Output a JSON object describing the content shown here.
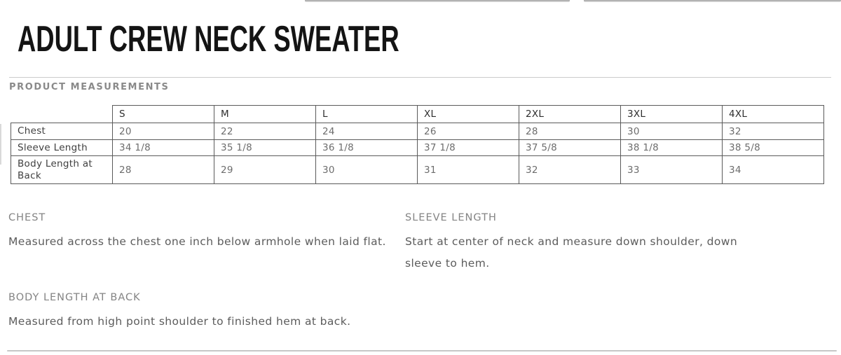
{
  "page": {
    "title": "ADULT CREW NECK SWEATER",
    "section_heading": "PRODUCT MEASUREMENTS"
  },
  "table": {
    "columns": [
      "S",
      "M",
      "L",
      "XL",
      "2XL",
      "3XL",
      "4XL"
    ],
    "rows": [
      {
        "label": "Chest",
        "values": [
          "20",
          "22",
          "24",
          "26",
          "28",
          "30",
          "32"
        ]
      },
      {
        "label": "Sleeve Length",
        "values": [
          "34 1/8",
          "35 1/8",
          "36 1/8",
          "37 1/8",
          "37 5/8",
          "38 1/8",
          "38 5/8"
        ]
      },
      {
        "label": "Body Length at Back",
        "values": [
          "28",
          "29",
          "30",
          "31",
          "32",
          "33",
          "34"
        ]
      }
    ]
  },
  "definitions": [
    {
      "heading": "CHEST",
      "text": "Measured across the chest one inch below armhole when laid flat."
    },
    {
      "heading": "SLEEVE LENGTH",
      "text": "Start at center of neck and measure down shoulder, down sleeve to hem."
    },
    {
      "heading": "BODY LENGTH AT BACK",
      "text": "Measured from high point shoulder to finished hem at back."
    }
  ],
  "colors": {
    "title_text": "#141414",
    "section_heading_text": "#8a8a8a",
    "rule_gray": "#cbcbcb",
    "table_border": "#5a5a5a",
    "table_header_text": "#2e2e2e",
    "table_label_text": "#3f3f3f",
    "table_value_text": "#6d6d6d",
    "definition_heading_text": "#848484",
    "definition_body_text": "#5c5c5c",
    "background": "#ffffff"
  }
}
